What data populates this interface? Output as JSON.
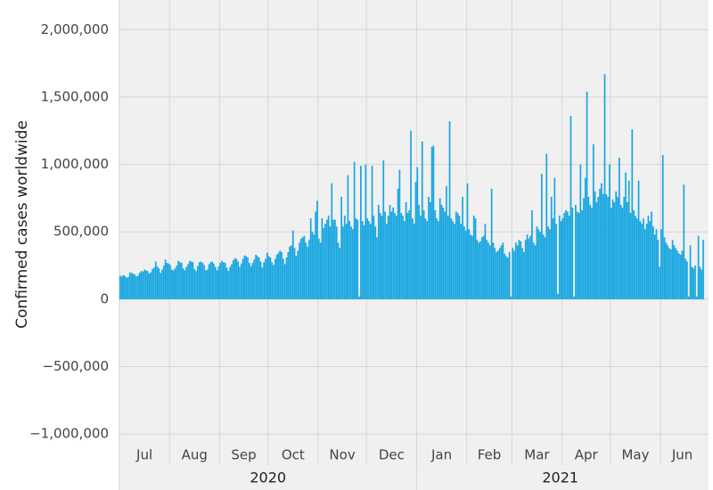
{
  "chart_data": {
    "type": "bar",
    "y_label": "Confirmed cases worldwide",
    "color": "#1aa7e0",
    "grid": true,
    "ylim": [
      -1230000,
      2220000
    ],
    "yticks": [
      {
        "value": -1000000,
        "label": "−1,000,000"
      },
      {
        "value": -500000,
        "label": "−500,000"
      },
      0,
      {
        "value": 500000,
        "label": "500,000"
      },
      {
        "value": 1000000,
        "label": "1,000,000"
      },
      {
        "value": 1500000,
        "label": "1,500,000"
      },
      {
        "value": 2000000,
        "label": "2,000,000"
      }
    ],
    "years": [
      {
        "label": "2020",
        "months": 6
      },
      {
        "label": "2021",
        "months": 6
      }
    ],
    "months": [
      {
        "label": "Jul",
        "values": [
          175000,
          168000,
          180000,
          172000,
          160000,
          165000,
          200000,
          195000,
          190000,
          185000,
          170000,
          175000,
          195000,
          210000,
          205000,
          220000,
          215000,
          210000,
          190000,
          200000,
          225000,
          235000,
          280000,
          245000,
          230000,
          195000,
          220000,
          250000,
          295000,
          270000,
          265000
        ]
      },
      {
        "label": "Aug",
        "values": [
          255000,
          220000,
          215000,
          230000,
          250000,
          285000,
          275000,
          270000,
          230000,
          215000,
          240000,
          260000,
          285000,
          280000,
          275000,
          225000,
          210000,
          245000,
          275000,
          280000,
          270000,
          255000,
          215000,
          220000,
          260000,
          275000,
          280000,
          265000,
          240000,
          215000,
          245000
        ]
      },
      {
        "label": "Sep",
        "values": [
          270000,
          285000,
          275000,
          270000,
          235000,
          210000,
          240000,
          260000,
          290000,
          305000,
          300000,
          280000,
          240000,
          265000,
          300000,
          325000,
          320000,
          310000,
          270000,
          245000,
          270000,
          295000,
          330000,
          320000,
          310000,
          280000,
          235000,
          275000,
          300000,
          345000
        ]
      },
      {
        "label": "Oct",
        "values": [
          320000,
          310000,
          275000,
          255000,
          300000,
          330000,
          345000,
          360000,
          350000,
          300000,
          260000,
          310000,
          350000,
          390000,
          400000,
          510000,
          380000,
          320000,
          360000,
          420000,
          450000,
          460000,
          470000,
          420000,
          390000,
          440000,
          600000,
          500000,
          480000,
          650000,
          730000
        ]
      },
      {
        "label": "Nov",
        "values": [
          450000,
          420000,
          600000,
          530000,
          560000,
          590000,
          620000,
          540000,
          860000,
          590000,
          590000,
          540000,
          420000,
          380000,
          760000,
          540000,
          620000,
          560000,
          920000,
          580000,
          540000,
          520000,
          1020000,
          600000,
          590000,
          20000,
          990000,
          580000,
          550000,
          1000000
        ]
      },
      {
        "label": "Dec",
        "values": [
          600000,
          580000,
          560000,
          990000,
          620000,
          540000,
          460000,
          700000,
          640000,
          620000,
          1030000,
          650000,
          560000,
          620000,
          700000,
          650000,
          680000,
          640000,
          620000,
          820000,
          960000,
          640000,
          620000,
          580000,
          720000,
          640000,
          660000,
          1250000,
          600000,
          560000,
          870000
        ]
      },
      {
        "label": "Jan",
        "values": [
          980000,
          700000,
          620000,
          1170000,
          660000,
          600000,
          580000,
          760000,
          720000,
          1130000,
          1140000,
          660000,
          600000,
          580000,
          750000,
          700000,
          680000,
          650000,
          840000,
          620000,
          1320000,
          600000,
          580000,
          560000,
          650000,
          640000,
          620000,
          560000,
          760000,
          540000,
          510000
        ]
      },
      {
        "label": "Feb",
        "values": [
          860000,
          520000,
          480000,
          470000,
          620000,
          600000,
          440000,
          420000,
          430000,
          460000,
          470000,
          560000,
          440000,
          420000,
          400000,
          820000,
          420000,
          380000,
          350000,
          360000,
          380000,
          400000,
          420000,
          340000,
          320000,
          310000,
          350000,
          20000
        ]
      },
      {
        "label": "Mar",
        "values": [
          380000,
          360000,
          420000,
          400000,
          440000,
          430000,
          380000,
          350000,
          440000,
          480000,
          450000,
          470000,
          660000,
          420000,
          400000,
          540000,
          520000,
          500000,
          930000,
          480000,
          460000,
          1080000,
          540000,
          520000,
          760000,
          600000,
          900000,
          560000,
          40000,
          620000,
          580000
        ]
      },
      {
        "label": "Apr",
        "values": [
          600000,
          640000,
          660000,
          650000,
          620000,
          1360000,
          680000,
          20000,
          700000,
          650000,
          640000,
          1000000,
          660000,
          750000,
          900000,
          1540000,
          760000,
          700000,
          680000,
          1150000,
          800000,
          720000,
          760000,
          820000,
          860000,
          780000,
          1670000,
          780000,
          760000,
          1000000
        ]
      },
      {
        "label": "May",
        "values": [
          680000,
          740000,
          720000,
          800000,
          760000,
          1050000,
          700000,
          680000,
          760000,
          940000,
          720000,
          880000,
          640000,
          1260000,
          660000,
          620000,
          600000,
          880000,
          580000,
          560000,
          600000,
          520000,
          560000,
          620000,
          580000,
          650000,
          540000,
          480000,
          520000,
          440000,
          240000
        ]
      },
      {
        "label": "Jun",
        "values": [
          520000,
          1070000,
          460000,
          420000,
          400000,
          380000,
          370000,
          440000,
          400000,
          380000,
          360000,
          340000,
          330000,
          360000,
          850000,
          300000,
          280000,
          20000,
          400000,
          240000,
          230000,
          250000,
          20000,
          470000,
          240000,
          220000,
          440000
        ]
      }
    ]
  }
}
